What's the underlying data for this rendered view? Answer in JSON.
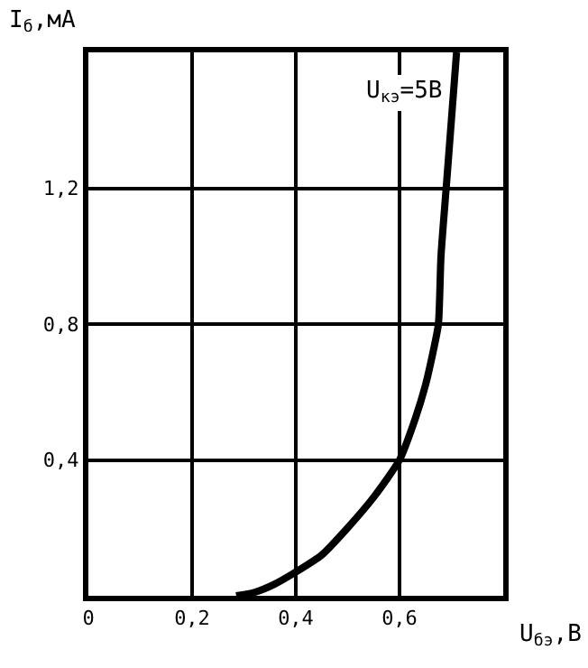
{
  "chart_data": {
    "type": "line",
    "xlabel": "U$_{бэ}$,В",
    "ylabel": "I$_{б}$,мА",
    "annotations": [
      "U$_{кэ}$=5В"
    ],
    "x": [
      0.285,
      0.32,
      0.36,
      0.4,
      0.45,
      0.5,
      0.55,
      0.6,
      0.63,
      0.65,
      0.665,
      0.675,
      0.68,
      0.69,
      0.7,
      0.71
    ],
    "series": [
      {
        "color": "#000000",
        "values": [
          0,
          0.01,
          0.035,
          0.07,
          0.12,
          0.2,
          0.29,
          0.4,
          0.52,
          0.62,
          0.72,
          0.8,
          1.0,
          1.2,
          1.4,
          1.6
        ]
      }
    ],
    "xlim": [
      0,
      0.8
    ],
    "ylim": [
      0,
      1.6
    ],
    "xticks": [
      {
        "value": 0,
        "label": "0"
      },
      {
        "value": 0.2,
        "label": "0,2"
      },
      {
        "value": 0.4,
        "label": "0,4"
      },
      {
        "value": 0.6,
        "label": "0,6"
      },
      {
        "value": 0.8,
        "label": null
      }
    ],
    "yticks": [
      {
        "value": 0,
        "label": null
      },
      {
        "value": 0.4,
        "label": "0,4"
      },
      {
        "value": 0.8,
        "label": "0,8"
      },
      {
        "value": 1.2,
        "label": "1,2"
      },
      {
        "value": 1.6,
        "label": null
      }
    ],
    "grid": true,
    "marker": "none",
    "line_style": "solid"
  }
}
